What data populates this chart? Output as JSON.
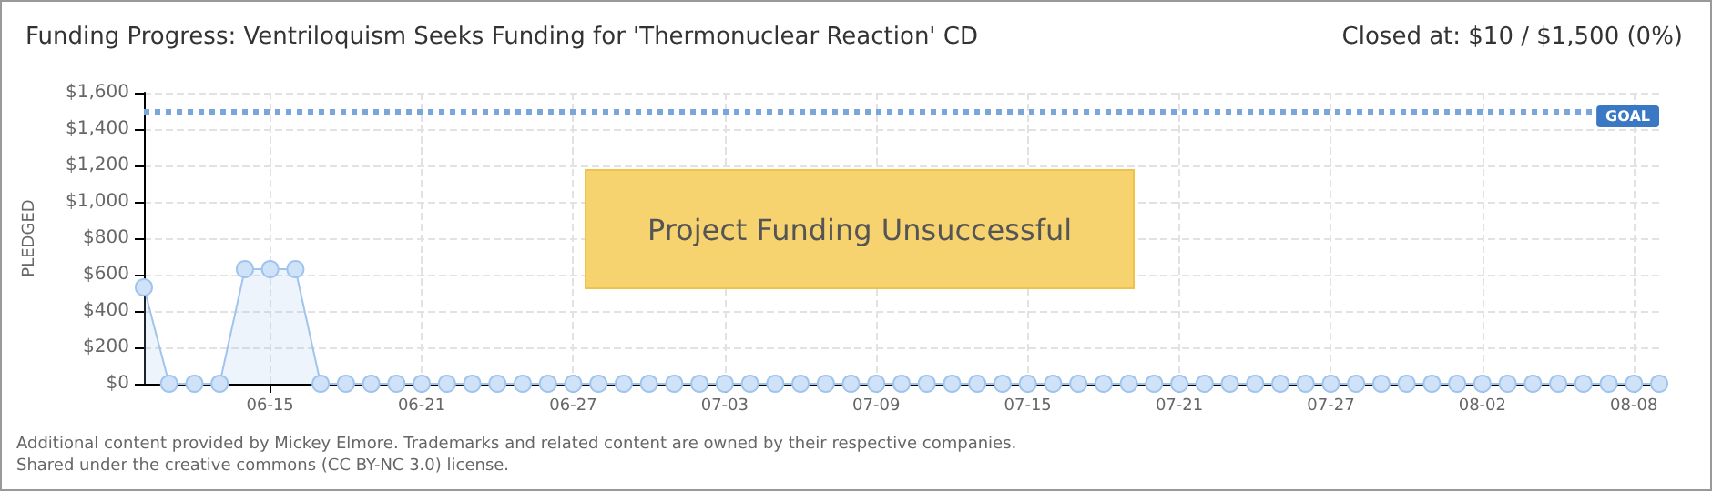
{
  "chart_data": {
    "type": "area",
    "title": "Funding Progress: Ventriloquism Seeks Funding for 'Thermonuclear Reaction' CD",
    "subtitle": "Closed at: $10 / $1,500 (0%)",
    "ylabel": "PLEDGED",
    "x": [
      "--06-10",
      "--06-11",
      "--06-12",
      "--06-13",
      "--06-14",
      "--06-15",
      "--06-16",
      "--06-17",
      "--06-18",
      "--06-19",
      "--06-20",
      "--06-21",
      "--06-22",
      "--06-23",
      "--06-24",
      "--06-25",
      "--06-26",
      "--06-27",
      "--06-28",
      "--06-29",
      "--06-30",
      "--07-01",
      "--07-02",
      "--07-03",
      "--07-04",
      "--07-05",
      "--07-06",
      "--07-07",
      "--07-08",
      "--07-09",
      "--07-10",
      "--07-11",
      "--07-12",
      "--07-13",
      "--07-14",
      "--07-15",
      "--07-16",
      "--07-17",
      "--07-18",
      "--07-19",
      "--07-20",
      "--07-21",
      "--07-22",
      "--07-23",
      "--07-24",
      "--07-25",
      "--07-26",
      "--07-27",
      "--07-28",
      "--07-29",
      "--07-30",
      "--07-31",
      "--08-01",
      "--08-02",
      "--08-03",
      "--08-04",
      "--08-05",
      "--08-06",
      "--08-07",
      "--08-08",
      "--08-09"
    ],
    "series": [
      {
        "color": "#9fc4ee",
        "values": [
          530,
          0,
          0,
          0,
          630,
          630,
          630,
          0,
          0,
          0,
          0,
          0,
          0,
          0,
          0,
          0,
          0,
          0,
          0,
          0,
          0,
          0,
          0,
          0,
          0,
          0,
          0,
          0,
          0,
          0,
          0,
          0,
          0,
          0,
          0,
          0,
          0,
          0,
          0,
          0,
          0,
          0,
          0,
          0,
          0,
          0,
          0,
          0,
          0,
          0,
          0,
          0,
          0,
          0,
          0,
          0,
          0,
          0,
          0,
          0,
          0
        ]
      }
    ],
    "xlim": [
      "--06-10",
      "--08-09"
    ],
    "xticks": [
      {
        "value": "--06-15",
        "label": "06-15"
      },
      {
        "value": "--06-21",
        "label": "06-21"
      },
      {
        "value": "--06-27",
        "label": "06-27"
      },
      {
        "value": "--07-03",
        "label": "07-03"
      },
      {
        "value": "--07-09",
        "label": "07-09"
      },
      {
        "value": "--07-15",
        "label": "07-15"
      },
      {
        "value": "--07-21",
        "label": "07-21"
      },
      {
        "value": "--07-27",
        "label": "07-27"
      },
      {
        "value": "--08-02",
        "label": "08-02"
      },
      {
        "value": "--08-08",
        "label": "08-08"
      }
    ],
    "ylim": [
      0,
      1600
    ],
    "yticks": [
      {
        "value": 0,
        "label": "$0"
      },
      {
        "value": 200,
        "label": "$200"
      },
      {
        "value": 400,
        "label": "$400"
      },
      {
        "value": 600,
        "label": "$600"
      },
      {
        "value": 800,
        "label": "$800"
      },
      {
        "value": 1000,
        "label": "$1,000"
      },
      {
        "value": 1200,
        "label": "$1,200"
      },
      {
        "value": 1400,
        "label": "$1,400"
      },
      {
        "value": 1600,
        "label": "$1,600"
      }
    ],
    "ref_lines": [
      {
        "axis": "y",
        "value": 1500,
        "label": "GOAL",
        "color": "#7aa6dc",
        "line_style": "dotted"
      }
    ],
    "annotations": [
      "Project Funding Unsuccessful",
      "Additional content provided by Mickey Elmore. Trademarks and related content are owned by their respective companies.",
      "Shared under the creative commons (CC BY-NC 3.0) license."
    ],
    "grid": true,
    "marker": "circle"
  }
}
